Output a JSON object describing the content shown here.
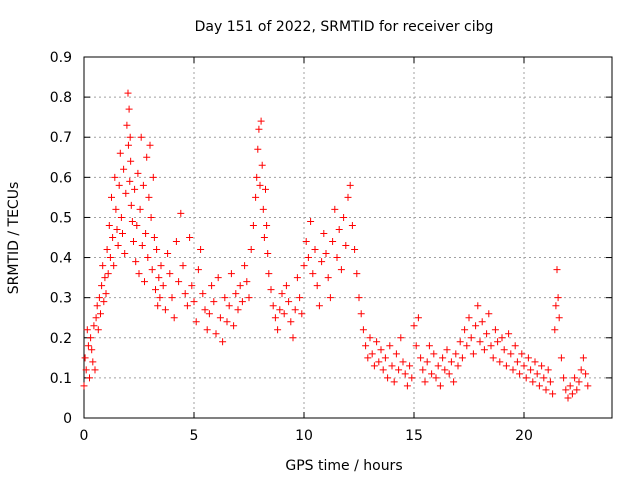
{
  "chart_data": {
    "type": "scatter",
    "title": "Day 151 of 2022, SRMTID for receiver cibg",
    "xlabel": "GPS time / hours",
    "ylabel": "SRMTID / TECUs",
    "xlim": [
      0,
      24
    ],
    "ylim": [
      0,
      0.9
    ],
    "xticks": [
      0,
      5,
      10,
      15,
      20
    ],
    "yticks": [
      0,
      0.1,
      0.2,
      0.3,
      0.4,
      0.5,
      0.6,
      0.7,
      0.8,
      0.9
    ],
    "xtick_labels": [
      "0",
      "5",
      "10",
      "15",
      "20"
    ],
    "ytick_labels": [
      "0",
      "0.1",
      "0.2",
      "0.3",
      "0.4",
      "0.5",
      "0.6",
      "0.7",
      "0.8",
      "0.9"
    ],
    "grid": true,
    "marker": "+",
    "color": "#ff0000",
    "series": [
      {
        "name": "SRMTID",
        "x": [
          0.0,
          0.05,
          0.1,
          0.15,
          0.2,
          0.25,
          0.3,
          0.35,
          0.4,
          0.45,
          0.5,
          0.55,
          0.6,
          0.65,
          0.7,
          0.75,
          0.8,
          0.85,
          0.9,
          0.95,
          1.0,
          1.05,
          1.1,
          1.15,
          1.2,
          1.25,
          1.3,
          1.35,
          1.4,
          1.45,
          1.5,
          1.55,
          1.6,
          1.65,
          1.7,
          1.75,
          1.8,
          1.85,
          1.9,
          1.95,
          2.0,
          2.02,
          2.05,
          2.08,
          2.1,
          2.12,
          2.15,
          2.2,
          2.25,
          2.3,
          2.35,
          2.4,
          2.45,
          2.5,
          2.55,
          2.6,
          2.65,
          2.7,
          2.75,
          2.8,
          2.85,
          2.9,
          2.95,
          3.0,
          3.05,
          3.1,
          3.15,
          3.2,
          3.25,
          3.3,
          3.35,
          3.4,
          3.45,
          3.5,
          3.6,
          3.7,
          3.8,
          3.9,
          4.0,
          4.1,
          4.2,
          4.3,
          4.4,
          4.5,
          4.6,
          4.7,
          4.8,
          4.9,
          5.0,
          5.1,
          5.2,
          5.3,
          5.4,
          5.5,
          5.6,
          5.7,
          5.8,
          5.9,
          6.0,
          6.1,
          6.2,
          6.3,
          6.4,
          6.5,
          6.6,
          6.7,
          6.8,
          6.9,
          7.0,
          7.1,
          7.2,
          7.3,
          7.4,
          7.5,
          7.6,
          7.7,
          7.8,
          7.85,
          7.9,
          7.95,
          8.0,
          8.05,
          8.1,
          8.15,
          8.2,
          8.25,
          8.3,
          8.35,
          8.4,
          8.5,
          8.6,
          8.7,
          8.8,
          8.9,
          9.0,
          9.1,
          9.2,
          9.3,
          9.4,
          9.5,
          9.6,
          9.7,
          9.8,
          9.9,
          10.0,
          10.1,
          10.2,
          10.3,
          10.4,
          10.5,
          10.6,
          10.7,
          10.8,
          10.9,
          11.0,
          11.1,
          11.2,
          11.3,
          11.4,
          11.5,
          11.6,
          11.7,
          11.8,
          11.9,
          12.0,
          12.1,
          12.2,
          12.3,
          12.4,
          12.5,
          12.6,
          12.7,
          12.8,
          12.9,
          13.0,
          13.1,
          13.2,
          13.3,
          13.4,
          13.5,
          13.6,
          13.7,
          13.8,
          13.9,
          14.0,
          14.1,
          14.2,
          14.3,
          14.4,
          14.5,
          14.6,
          14.7,
          14.8,
          14.9,
          15.0,
          15.1,
          15.2,
          15.3,
          15.4,
          15.5,
          15.6,
          15.7,
          15.8,
          15.9,
          16.0,
          16.1,
          16.2,
          16.3,
          16.4,
          16.5,
          16.6,
          16.7,
          16.8,
          16.9,
          17.0,
          17.1,
          17.2,
          17.3,
          17.4,
          17.5,
          17.6,
          17.7,
          17.8,
          17.9,
          18.0,
          18.1,
          18.2,
          18.3,
          18.4,
          18.5,
          18.6,
          18.7,
          18.8,
          18.9,
          19.0,
          19.1,
          19.2,
          19.3,
          19.4,
          19.5,
          19.6,
          19.7,
          19.8,
          19.9,
          20.0,
          20.1,
          20.2,
          20.3,
          20.4,
          20.5,
          20.6,
          20.7,
          20.8,
          20.9,
          21.0,
          21.1,
          21.2,
          21.3,
          21.4,
          21.45,
          21.5,
          21.55,
          21.6,
          21.7,
          21.8,
          21.9,
          22.0,
          22.1,
          22.2,
          22.3,
          22.4,
          22.5,
          22.6,
          22.7,
          22.8,
          22.9
        ],
        "y": [
          0.08,
          0.15,
          0.12,
          0.22,
          0.18,
          0.1,
          0.2,
          0.17,
          0.14,
          0.23,
          0.12,
          0.25,
          0.28,
          0.22,
          0.3,
          0.26,
          0.33,
          0.38,
          0.29,
          0.35,
          0.31,
          0.42,
          0.36,
          0.48,
          0.4,
          0.55,
          0.45,
          0.38,
          0.6,
          0.52,
          0.47,
          0.43,
          0.58,
          0.66,
          0.5,
          0.46,
          0.62,
          0.41,
          0.56,
          0.73,
          0.81,
          0.68,
          0.77,
          0.59,
          0.7,
          0.64,
          0.53,
          0.49,
          0.44,
          0.57,
          0.39,
          0.48,
          0.61,
          0.36,
          0.52,
          0.7,
          0.43,
          0.58,
          0.34,
          0.46,
          0.65,
          0.4,
          0.55,
          0.68,
          0.5,
          0.37,
          0.6,
          0.45,
          0.32,
          0.42,
          0.28,
          0.35,
          0.3,
          0.38,
          0.33,
          0.27,
          0.41,
          0.36,
          0.3,
          0.25,
          0.44,
          0.34,
          0.51,
          0.38,
          0.31,
          0.28,
          0.45,
          0.33,
          0.29,
          0.24,
          0.37,
          0.42,
          0.31,
          0.27,
          0.22,
          0.26,
          0.33,
          0.29,
          0.21,
          0.35,
          0.25,
          0.19,
          0.3,
          0.24,
          0.28,
          0.36,
          0.23,
          0.31,
          0.27,
          0.33,
          0.29,
          0.38,
          0.34,
          0.3,
          0.42,
          0.48,
          0.55,
          0.6,
          0.67,
          0.72,
          0.58,
          0.74,
          0.63,
          0.52,
          0.45,
          0.57,
          0.48,
          0.41,
          0.36,
          0.32,
          0.28,
          0.25,
          0.22,
          0.27,
          0.31,
          0.26,
          0.33,
          0.29,
          0.24,
          0.2,
          0.27,
          0.35,
          0.3,
          0.26,
          0.38,
          0.44,
          0.4,
          0.49,
          0.36,
          0.42,
          0.33,
          0.28,
          0.39,
          0.46,
          0.41,
          0.35,
          0.3,
          0.44,
          0.52,
          0.4,
          0.47,
          0.37,
          0.5,
          0.43,
          0.55,
          0.58,
          0.48,
          0.42,
          0.36,
          0.3,
          0.26,
          0.22,
          0.18,
          0.15,
          0.2,
          0.16,
          0.13,
          0.19,
          0.14,
          0.17,
          0.12,
          0.15,
          0.1,
          0.18,
          0.13,
          0.09,
          0.16,
          0.12,
          0.2,
          0.14,
          0.11,
          0.08,
          0.13,
          0.1,
          0.23,
          0.18,
          0.25,
          0.15,
          0.12,
          0.09,
          0.14,
          0.18,
          0.11,
          0.16,
          0.1,
          0.13,
          0.08,
          0.15,
          0.12,
          0.17,
          0.11,
          0.14,
          0.09,
          0.16,
          0.13,
          0.19,
          0.15,
          0.22,
          0.18,
          0.25,
          0.2,
          0.16,
          0.23,
          0.28,
          0.19,
          0.24,
          0.17,
          0.21,
          0.26,
          0.18,
          0.15,
          0.22,
          0.19,
          0.14,
          0.2,
          0.17,
          0.13,
          0.21,
          0.16,
          0.12,
          0.18,
          0.14,
          0.11,
          0.16,
          0.13,
          0.1,
          0.15,
          0.12,
          0.09,
          0.14,
          0.11,
          0.08,
          0.13,
          0.1,
          0.07,
          0.12,
          0.09,
          0.06,
          0.22,
          0.28,
          0.37,
          0.3,
          0.25,
          0.15,
          0.1,
          0.07,
          0.05,
          0.08,
          0.06,
          0.1,
          0.07,
          0.09,
          0.12,
          0.15,
          0.11,
          0.08
        ]
      }
    ]
  }
}
